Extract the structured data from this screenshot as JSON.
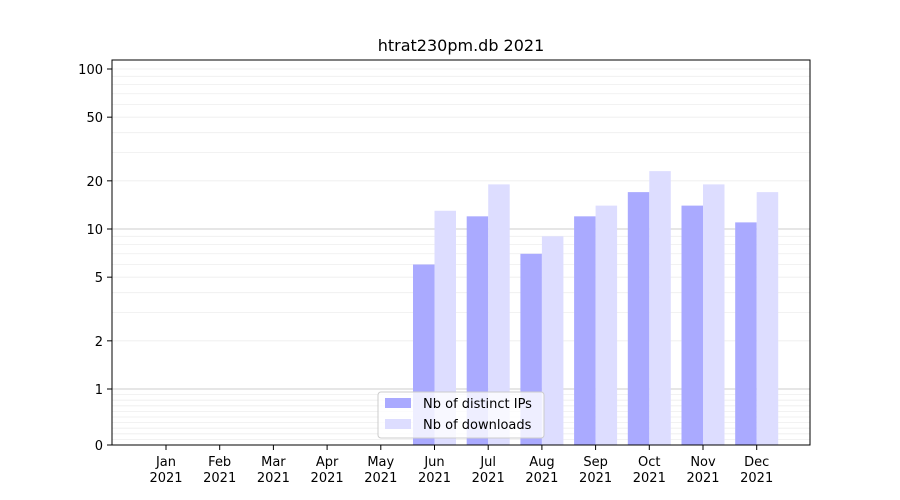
{
  "chart_data": {
    "type": "bar",
    "title": "htrat230pm.db 2021",
    "xlabel": "",
    "ylabel": "",
    "y_scale": "symlog",
    "ylim": [
      0,
      100
    ],
    "yticks": [
      0,
      1,
      2,
      5,
      10,
      20,
      50,
      100
    ],
    "ytick_labels": [
      "0",
      "1",
      "2",
      "5",
      "10",
      "20",
      "50",
      "100"
    ],
    "categories": [
      "Jan 2021",
      "Feb 2021",
      "Mar 2021",
      "Apr 2021",
      "May 2021",
      "Jun 2021",
      "Jul 2021",
      "Aug 2021",
      "Sep 2021",
      "Oct 2021",
      "Nov 2021",
      "Dec 2021"
    ],
    "category_labels": [
      [
        "Jan",
        "2021"
      ],
      [
        "Feb",
        "2021"
      ],
      [
        "Mar",
        "2021"
      ],
      [
        "Apr",
        "2021"
      ],
      [
        "May",
        "2021"
      ],
      [
        "Jun",
        "2021"
      ],
      [
        "Jul",
        "2021"
      ],
      [
        "Aug",
        "2021"
      ],
      [
        "Sep",
        "2021"
      ],
      [
        "Oct",
        "2021"
      ],
      [
        "Nov",
        "2021"
      ],
      [
        "Dec",
        "2021"
      ]
    ],
    "series": [
      {
        "name": "Nb of distinct IPs",
        "color": "#aaaaff",
        "values": [
          0,
          0,
          0,
          0,
          0,
          6,
          12,
          7,
          12,
          17,
          14,
          11
        ]
      },
      {
        "name": "Nb of downloads",
        "color": "#ddddff",
        "values": [
          0,
          0,
          0,
          0,
          0,
          13,
          19,
          9,
          14,
          23,
          19,
          17
        ]
      }
    ],
    "grid": true,
    "legend_position": "lower-center"
  }
}
